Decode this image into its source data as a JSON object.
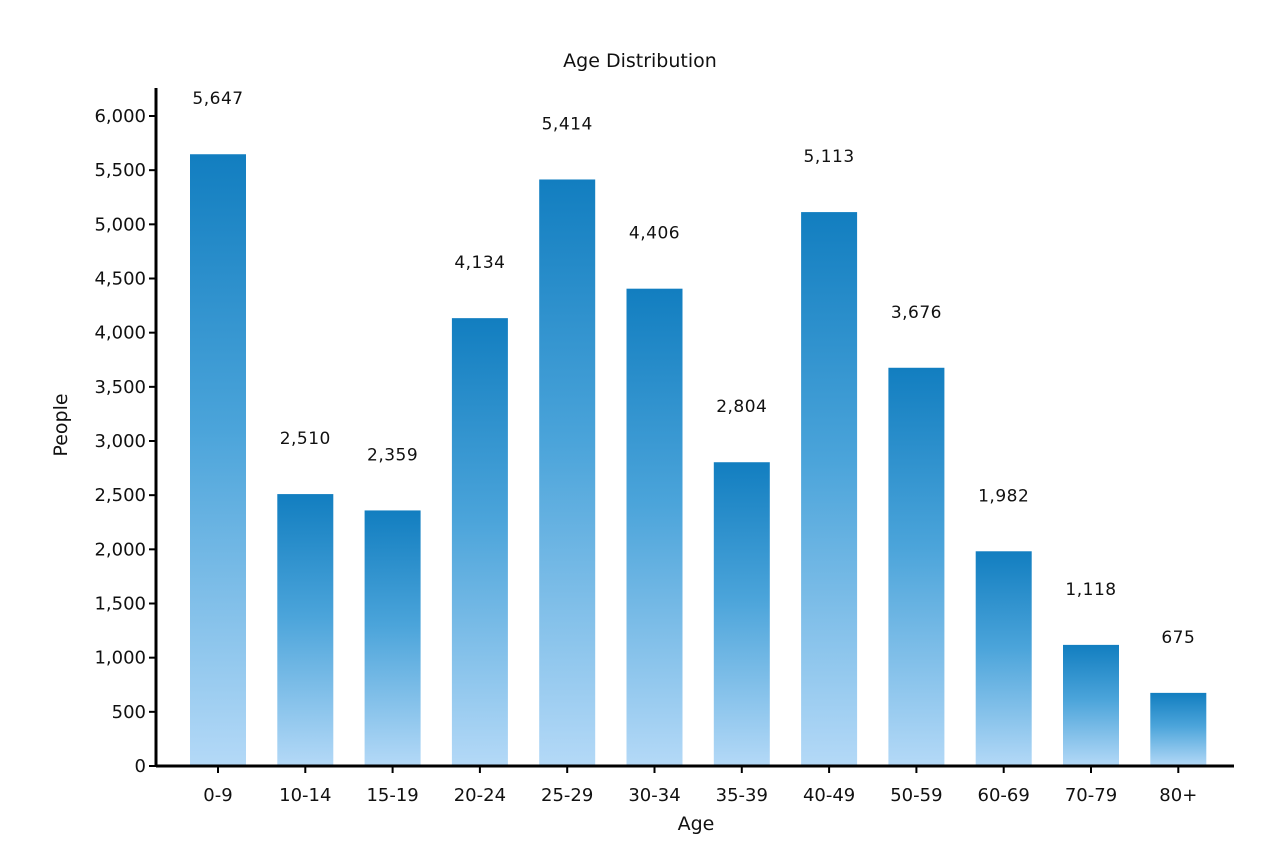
{
  "chart_data": {
    "type": "bar",
    "title": "Age Distribution",
    "xlabel": "Age",
    "ylabel": "People",
    "categories": [
      "0-9",
      "10-14",
      "15-19",
      "20-24",
      "25-29",
      "30-34",
      "35-39",
      "40-49",
      "50-59",
      "60-69",
      "70-79",
      "80+"
    ],
    "values": [
      5647,
      2510,
      2359,
      4134,
      5414,
      4406,
      2804,
      5113,
      3676,
      1982,
      1118,
      675
    ],
    "value_labels": [
      "5,647",
      "2,510",
      "2,359",
      "4,134",
      "5,414",
      "4,406",
      "2,804",
      "5,113",
      "3,676",
      "1,982",
      "1,118",
      "675"
    ],
    "ylim": [
      0,
      6000
    ],
    "yticks": [
      0,
      500,
      1000,
      1500,
      2000,
      2500,
      3000,
      3500,
      4000,
      4500,
      5000,
      5500,
      6000
    ],
    "ytick_labels": [
      "0",
      "500",
      "1,000",
      "1,500",
      "2,000",
      "2,500",
      "3,000",
      "3,500",
      "4,000",
      "4,500",
      "5,000",
      "5,500",
      "6,000"
    ],
    "grid": false,
    "legend": "none",
    "colors": {
      "bar_top": "#127ec0",
      "bar_mid": "#4ba4da",
      "bar_bottom": "#b4d9f7",
      "axis": "#000000",
      "text": "#111111"
    }
  }
}
